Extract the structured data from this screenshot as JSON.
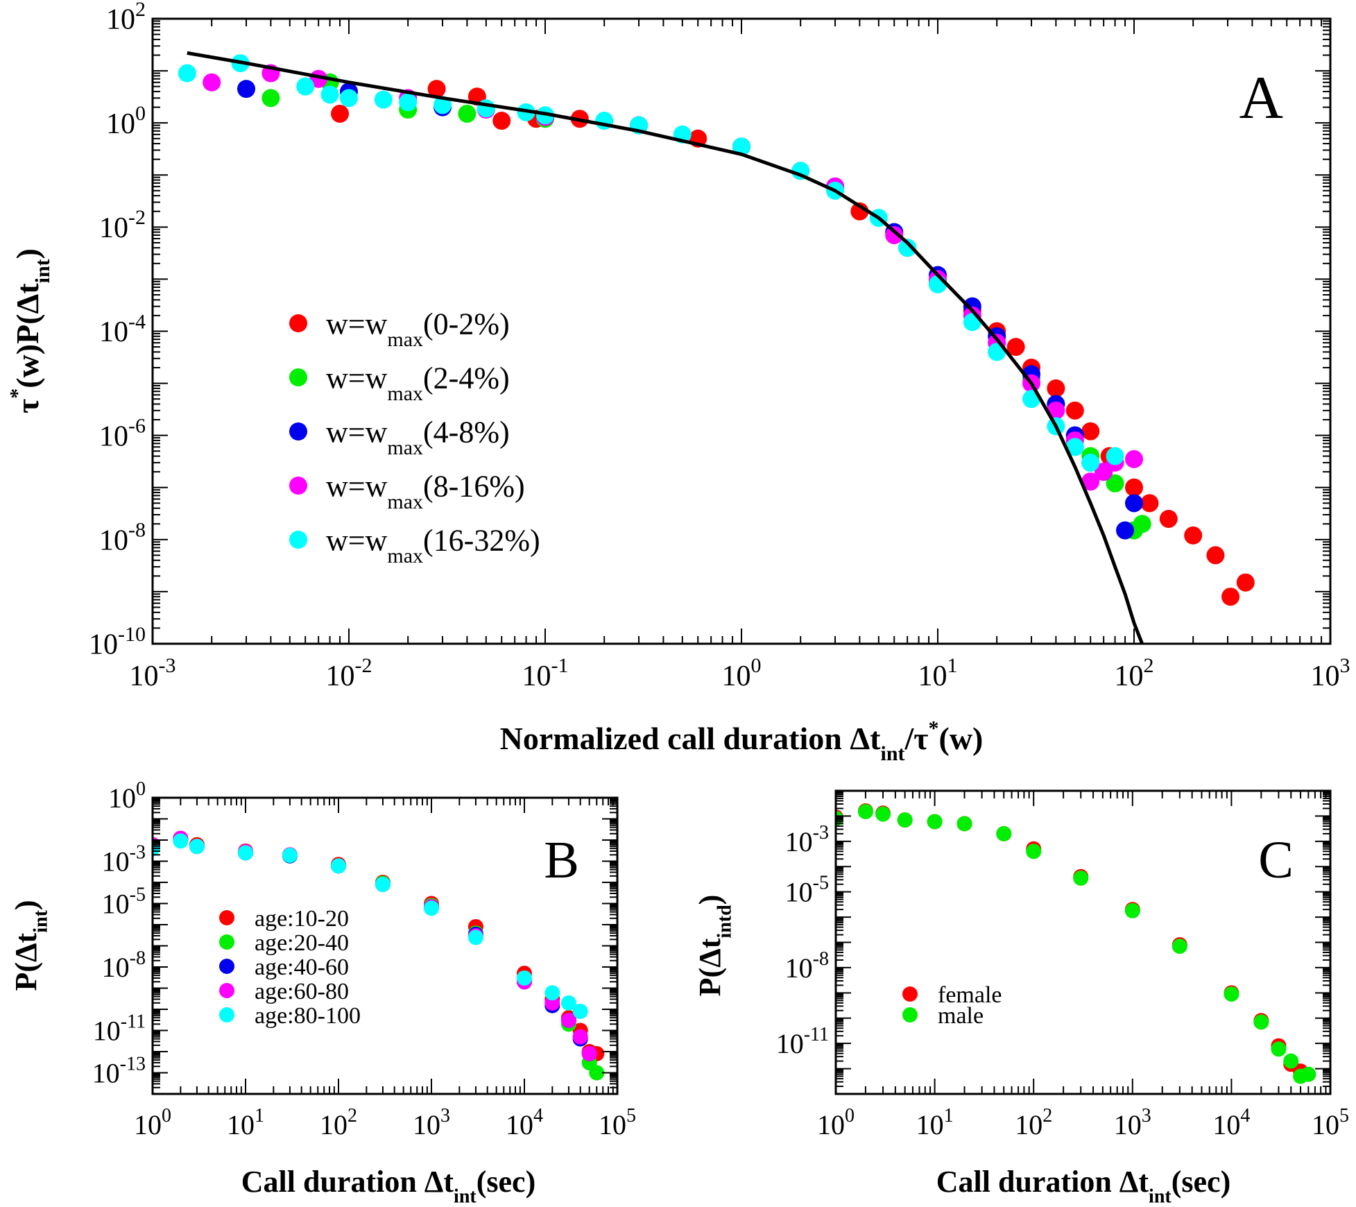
{
  "chart_data": [
    {
      "panel": "A",
      "type": "scatter",
      "panel_label": "A",
      "xscale": "log",
      "yscale": "log",
      "xlim": [
        0.001,
        1000
      ],
      "ylim": [
        1e-10,
        100
      ],
      "x_ticks": [
        "10^-3",
        "10^-2",
        "10^-1",
        "10^0",
        "10^1",
        "10^2",
        "10^3"
      ],
      "y_ticks": [
        "10^-10",
        "10^-8",
        "10^-6",
        "10^-4",
        "10^-2",
        "10^0",
        "10^2"
      ],
      "xlabel_parts": [
        "Normalized call duration ",
        "Δt",
        "int",
        "/τ",
        "*",
        "(w)"
      ],
      "ylabel_parts": [
        "τ",
        "*",
        "(w)P(Δt",
        "int",
        ")"
      ],
      "legend_placement": "left-middle",
      "series": [
        {
          "name": "w=w_max(0-2%)",
          "label_main": "w=w",
          "label_sub": "max",
          "label_tail": "(0-2%)",
          "color": "#ff0000",
          "x": [
            0.009,
            0.028,
            0.045,
            0.06,
            0.09,
            0.15,
            0.3,
            0.6,
            1.0,
            2.0,
            4.0,
            7.0,
            10.0,
            15.0,
            20.0,
            25.0,
            30.0,
            40.0,
            50.0,
            60.0,
            75.0,
            100.0,
            120.0,
            150.0,
            200.0,
            260.0,
            310.0,
            370.0
          ],
          "y": [
            1.5,
            4.5,
            3.2,
            1.1,
            1.2,
            1.2,
            0.9,
            0.5,
            0.35,
            0.12,
            0.02,
            0.004,
            0.0009,
            0.00025,
            0.0001,
            5e-05,
            2e-05,
            8e-06,
            3e-06,
            1.2e-06,
            4e-07,
            1e-07,
            5e-08,
            2.5e-08,
            1.2e-08,
            5e-09,
            8e-10,
            1.5e-09
          ]
        },
        {
          "name": "w=w_max(2-4%)",
          "label_main": "w=w",
          "label_sub": "max",
          "label_tail": "(2-4%)",
          "color": "#00ee00",
          "x": [
            0.004,
            0.008,
            0.02,
            0.04,
            0.1,
            0.3,
            1.0,
            3.0,
            6.0,
            10.0,
            15.0,
            20.0,
            30.0,
            40.0,
            50.0,
            60.0,
            80.0,
            100.0,
            110.0
          ],
          "y": [
            3.0,
            6.0,
            1.8,
            1.5,
            1.2,
            0.9,
            0.35,
            0.06,
            0.008,
            0.0008,
            0.0002,
            6e-05,
            1.2e-05,
            4e-06,
            1e-06,
            4e-07,
            1.2e-07,
            1.5e-08,
            2e-08
          ]
        },
        {
          "name": "w=w_max(4-8%)",
          "label_main": "w=w",
          "label_sub": "max",
          "label_tail": "(4-8%)",
          "color": "#0000ee",
          "x": [
            0.003,
            0.01,
            0.03,
            0.1,
            0.3,
            1.0,
            3.0,
            6.0,
            10.0,
            15.0,
            20.0,
            30.0,
            40.0,
            50.0,
            60.0,
            70.0,
            90.0,
            100.0
          ],
          "y": [
            4.5,
            4.0,
            2.0,
            1.3,
            0.9,
            0.35,
            0.06,
            0.008,
            0.0012,
            0.0003,
            8e-05,
            1.5e-05,
            4e-06,
            1e-06,
            3e-07,
            2e-07,
            1.5e-08,
            5e-08
          ]
        },
        {
          "name": "w=w_max(8-16%)",
          "label_main": "w=w",
          "label_sub": "max",
          "label_tail": "(8-16%)",
          "color": "#ff00ff",
          "x": [
            0.002,
            0.004,
            0.007,
            0.02,
            0.05,
            0.1,
            0.3,
            1.0,
            3.0,
            6.0,
            10.0,
            15.0,
            20.0,
            30.0,
            40.0,
            50.0,
            60.0,
            70.0,
            80.0,
            100.0
          ],
          "y": [
            6.0,
            9.0,
            7.0,
            3.0,
            1.8,
            1.3,
            0.9,
            0.35,
            0.06,
            0.007,
            0.001,
            0.0002,
            6e-05,
            1e-05,
            3e-06,
            8e-07,
            1.3e-07,
            2e-07,
            3e-07,
            3.5e-07
          ]
        },
        {
          "name": "w=w_max(16-32%)",
          "label_main": "w=w",
          "label_sub": "max",
          "label_tail": "(16-32%)",
          "color": "#00ffff",
          "x": [
            0.0015,
            0.0028,
            0.006,
            0.008,
            0.01,
            0.015,
            0.02,
            0.03,
            0.05,
            0.08,
            0.1,
            0.2,
            0.3,
            0.5,
            1.0,
            2.0,
            3.0,
            5.0,
            7.0,
            10.0,
            15.0,
            20.0,
            30.0,
            40.0,
            50.0,
            60.0,
            80.0
          ],
          "y": [
            9.0,
            14.0,
            5.0,
            3.5,
            3.0,
            2.8,
            2.5,
            2.2,
            1.9,
            1.6,
            1.4,
            1.1,
            0.9,
            0.6,
            0.35,
            0.12,
            0.05,
            0.015,
            0.004,
            0.0008,
            0.00015,
            4e-05,
            5e-06,
            1.5e-06,
            6e-07,
            3e-07,
            4e-07
          ]
        }
      ],
      "fit_curve": {
        "color": "#000000",
        "x": [
          0.0015,
          0.003,
          0.01,
          0.03,
          0.1,
          0.3,
          1.0,
          2.0,
          3.0,
          5.0,
          7.0,
          10.0,
          15.0,
          20.0,
          30.0,
          40.0,
          50.0,
          60.0,
          70.0,
          80.0,
          90.0,
          100.0,
          110.0,
          120.0
        ],
        "y": [
          22.0,
          14.0,
          6.0,
          3.0,
          1.5,
          0.7,
          0.25,
          0.1,
          0.05,
          0.015,
          0.005,
          0.0012,
          0.00025,
          7e-05,
          1e-05,
          1.5e-06,
          2.5e-07,
          5e-08,
          1.2e-08,
          3e-09,
          9e-10,
          2.5e-10,
          1e-10,
          5e-11
        ]
      }
    },
    {
      "panel": "B",
      "type": "scatter",
      "panel_label": "B",
      "xscale": "log",
      "yscale": "log",
      "xlim": [
        1,
        100000
      ],
      "ylim": [
        1e-14,
        1
      ],
      "x_ticks": [
        "10^0",
        "10^1",
        "10^2",
        "10^3",
        "10^4",
        "10^5"
      ],
      "y_ticks": [
        "10^-13",
        "10^-11",
        "10^-8",
        "10^-5",
        "10^-3",
        "10^0"
      ],
      "xlabel_parts": [
        "Call duration ",
        "Δt",
        "int",
        "(sec)"
      ],
      "ylabel_parts": [
        "P(Δt",
        "int",
        ")"
      ],
      "legend_placement": "left-middle",
      "series": [
        {
          "name": "age:10-20",
          "color": "#ff0000",
          "x": [
            1,
            2,
            3,
            10,
            30,
            100,
            300,
            1000,
            3000,
            10000,
            20000,
            30000,
            40000,
            50000,
            60000
          ],
          "y": [
            0.006,
            0.012,
            0.006,
            0.003,
            0.002,
            0.0007,
            0.0001,
            1e-05,
            8e-07,
            5e-09,
            3e-10,
            4e-11,
            1e-11,
            1e-12,
            8e-13
          ]
        },
        {
          "name": "age:20-40",
          "color": "#00ee00",
          "x": [
            1,
            2,
            3,
            10,
            30,
            100,
            300,
            1000,
            3000,
            10000,
            20000,
            30000,
            40000,
            50000,
            60000
          ],
          "y": [
            0.005,
            0.01,
            0.005,
            0.0025,
            0.0018,
            0.0006,
            9e-05,
            8e-06,
            4e-07,
            2e-09,
            1.5e-10,
            2e-11,
            5e-12,
            3e-13,
            1e-13
          ]
        },
        {
          "name": "age:40-60",
          "color": "#0000ee",
          "x": [
            1,
            2,
            3,
            10,
            30,
            100,
            300,
            1000,
            3000,
            10000,
            20000,
            30000,
            40000,
            50000
          ],
          "y": [
            0.005,
            0.011,
            0.005,
            0.0025,
            0.0018,
            0.0006,
            8e-05,
            7e-06,
            3.5e-07,
            2e-09,
            1.5e-10,
            3e-11,
            4e-12,
            8e-13
          ]
        },
        {
          "name": "age:60-80",
          "color": "#ff00ff",
          "x": [
            1,
            2,
            3,
            10,
            30,
            100,
            300,
            1000,
            3000,
            10000,
            20000,
            30000,
            40000,
            50000
          ],
          "y": [
            0.006,
            0.012,
            0.005,
            0.0028,
            0.002,
            0.0006,
            8e-05,
            7e-06,
            3e-07,
            2e-09,
            2e-10,
            3e-11,
            5e-12,
            8e-13
          ]
        },
        {
          "name": "age:80-100",
          "color": "#00ffff",
          "x": [
            1,
            2,
            3,
            10,
            30,
            100,
            300,
            1000,
            3000,
            10000,
            20000,
            30000,
            40000
          ],
          "y": [
            0.004,
            0.009,
            0.005,
            0.0025,
            0.0019,
            0.0006,
            8e-05,
            6e-06,
            2.5e-07,
            3e-09,
            6e-10,
            2e-10,
            8e-11
          ]
        }
      ]
    },
    {
      "panel": "C",
      "type": "scatter",
      "panel_label": "C",
      "xscale": "log",
      "yscale": "log",
      "xlim": [
        1,
        100000
      ],
      "ylim": [
        1e-13,
        0.1
      ],
      "x_ticks": [
        "10^0",
        "10^1",
        "10^2",
        "10^3",
        "10^4",
        "10^5"
      ],
      "y_ticks": [
        "10^-11",
        "10^-8",
        "10^-5",
        "10^-3"
      ],
      "xlabel_parts": [
        "Call duration ",
        "Δt",
        "int",
        "(sec)"
      ],
      "ylabel_parts": [
        "P(Δt",
        "intd",
        ")"
      ],
      "legend_placement": "bottom-left",
      "series": [
        {
          "name": "female",
          "color": "#ff0000",
          "x": [
            1,
            2,
            3,
            5,
            10,
            20,
            50,
            100,
            300,
            1000,
            3000,
            10000,
            20000,
            30000,
            40000,
            50000
          ],
          "y": [
            0.009,
            0.016,
            0.013,
            0.007,
            0.006,
            0.005,
            0.002,
            0.0005,
            4e-05,
            2e-06,
            8e-08,
            1e-09,
            8e-11,
            8e-12,
            1.5e-12,
            8e-13
          ]
        },
        {
          "name": "male",
          "color": "#00ee00",
          "x": [
            1,
            2,
            3,
            5,
            10,
            20,
            50,
            100,
            300,
            1000,
            3000,
            10000,
            20000,
            30000,
            40000,
            50000,
            60000
          ],
          "y": [
            0.008,
            0.015,
            0.012,
            0.007,
            0.006,
            0.005,
            0.002,
            0.0004,
            3.5e-05,
            1.8e-06,
            7e-08,
            9e-10,
            7e-11,
            6e-12,
            2e-12,
            5e-13,
            6e-13
          ]
        }
      ]
    }
  ]
}
